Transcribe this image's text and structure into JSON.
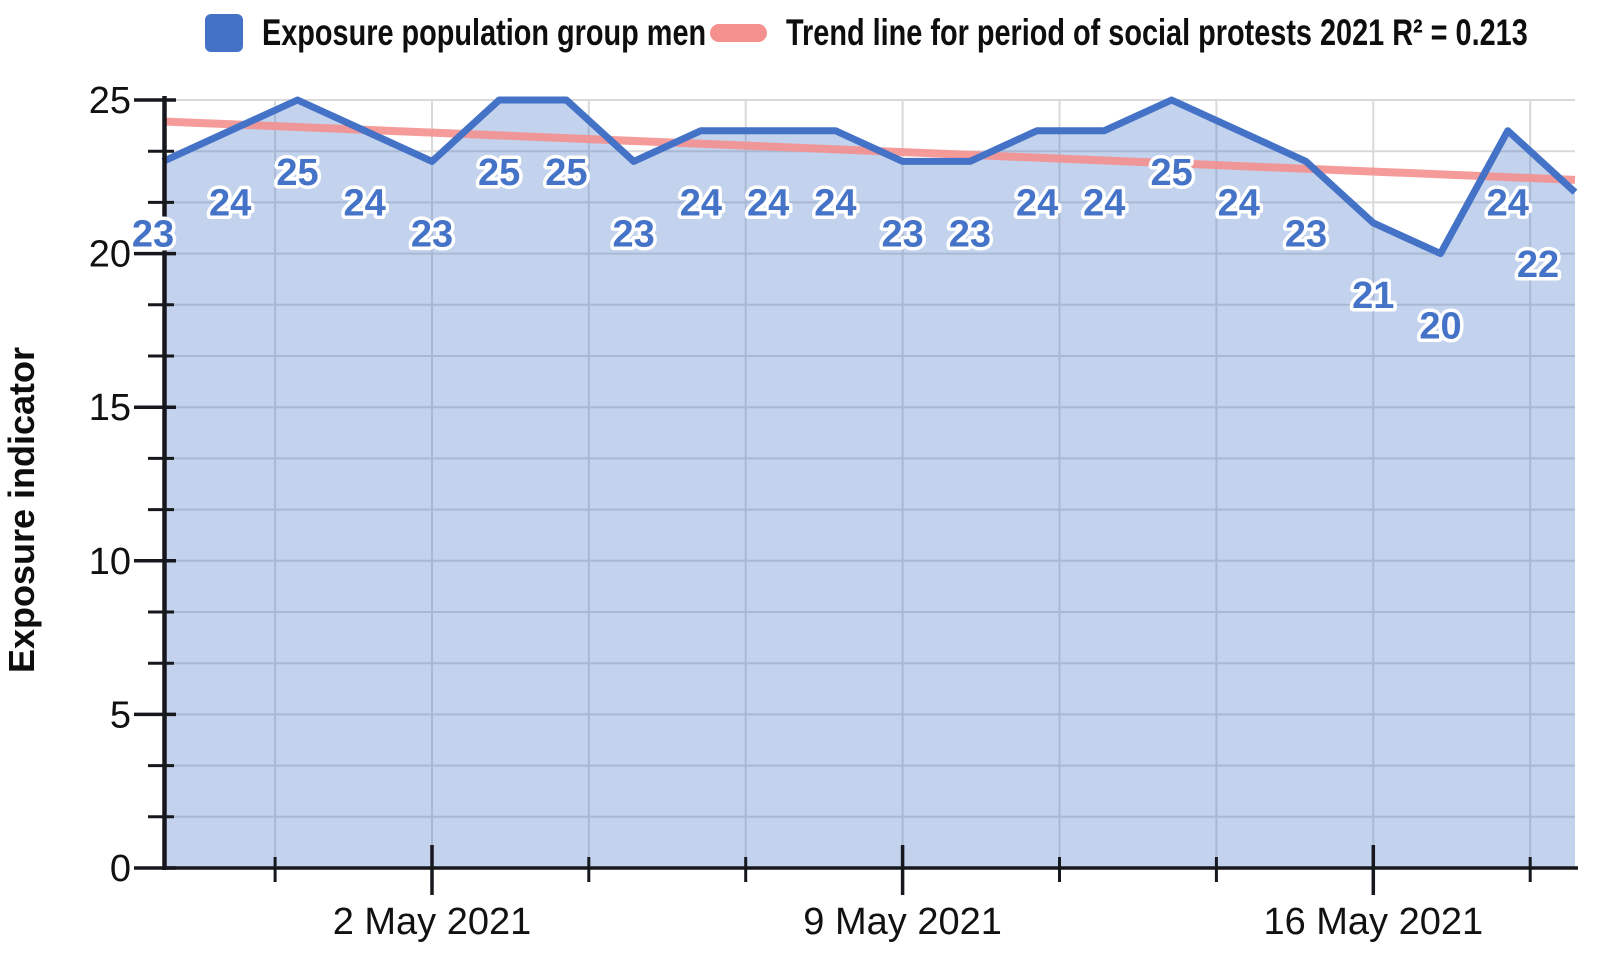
{
  "legend": {
    "items": [
      {
        "label": "Exposure population group men",
        "swatch": "square",
        "color": "#4472C6"
      },
      {
        "label": "Trend line for period of social protests 2021 R² = 0.213",
        "swatch": "dash",
        "color": "#F4908E"
      }
    ]
  },
  "chart_data": {
    "type": "area",
    "title": "",
    "xlabel": "",
    "ylabel": "Exposure indicator",
    "ylim": [
      0,
      25
    ],
    "y_ticks": [
      0,
      5,
      10,
      15,
      20,
      25
    ],
    "y_minor_divisions_per_major": 3,
    "x_tick_labels": [
      "2 May 2021",
      "9 May 2021",
      "16 May 2021"
    ],
    "x_major_tick_point_indices": [
      4,
      11,
      18
    ],
    "x_minor_intervals_per_major": 3,
    "grid": true,
    "legend_position": "top",
    "series": [
      {
        "name": "Exposure population group men",
        "values": [
          23,
          24,
          25,
          24,
          23,
          25,
          25,
          23,
          24,
          24,
          24,
          23,
          23,
          24,
          24,
          25,
          24,
          23,
          21,
          20,
          24,
          22
        ],
        "point_labels_shown": true
      }
    ],
    "trend_line": {
      "name": "Trend line for period of social protests 2021 R² = 0.213",
      "r_squared": 0.213,
      "start_value": 24.3,
      "end_value": 22.4
    },
    "colors": {
      "series_line": "#4472C6",
      "area_fill": "rgba(68,114,198,0.32)",
      "trend_line": "#F4908E",
      "gridline": "#D9D9D9",
      "axis": "#16181D",
      "point_label": "#4573C7",
      "tick_label": "#111111"
    }
  }
}
